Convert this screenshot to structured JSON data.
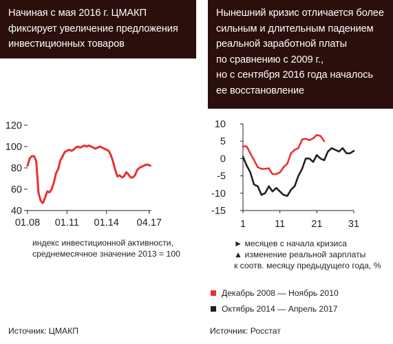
{
  "left_panel": {
    "title_lines": [
      "Начиная с мая 2016 г. ЦМАКП",
      "фиксирует увеличение предложения",
      "инвестиционных товаров"
    ],
    "caption_lines": [
      "индекс инвестиционной активности,",
      "среднемесячное значение 2013 = 100"
    ],
    "source": "Источник: ЦМАКП"
  },
  "right_panel": {
    "title_lines": [
      "Нынешний кризис отличается более",
      "сильным и длительным падением",
      "реальной заработной платы",
      "по сравнению с  2009 г.,",
      "но с сентября 2016 года началось",
      "ее восстановление"
    ],
    "caption_lines": [
      "► месяцев с начала кризиса",
      "▲ изменение реальной зарплаты",
      "к соотв. месяцу предыдущего года, %"
    ],
    "legend": [
      {
        "label": "Декабрь 2008 — Ноябрь 2010",
        "color": "#e8312f"
      },
      {
        "label": "Октябрь 2014 — Апрель 2017",
        "color": "#231f20"
      }
    ],
    "source": "Источник: Росстат"
  },
  "chart_data": [
    {
      "type": "line",
      "title": "",
      "xlabel": "",
      "ylabel": "",
      "x_ticks": [
        "01.08",
        "01.11",
        "01.14",
        "04.17"
      ],
      "x_tick_positions": [
        0,
        36,
        72,
        111
      ],
      "y_ticks": [
        40,
        60,
        80,
        100,
        120
      ],
      "ylim": [
        40,
        120
      ],
      "xlim": [
        0,
        113
      ],
      "grid": false,
      "series": [
        {
          "color": "#e8312f",
          "x": [
            0,
            2,
            4,
            6,
            8,
            10,
            12,
            14,
            16,
            18,
            20,
            22,
            24,
            26,
            28,
            30,
            32,
            34,
            36,
            38,
            40,
            42,
            44,
            46,
            48,
            50,
            52,
            54,
            56,
            58,
            60,
            62,
            64,
            66,
            68,
            70,
            72,
            74,
            76,
            78,
            80,
            82,
            84,
            86,
            88,
            90,
            92,
            94,
            96,
            98,
            100,
            102,
            104,
            106,
            108,
            110,
            112
          ],
          "y": [
            82,
            89,
            91,
            91,
            86,
            57,
            49,
            47,
            52,
            58,
            57,
            60,
            66,
            75,
            79,
            87,
            91,
            95,
            96,
            97,
            96,
            97,
            99,
            100,
            99,
            100,
            101,
            100,
            101,
            100,
            99,
            98,
            99,
            100,
            99,
            98,
            97,
            96,
            92,
            86,
            78,
            72,
            73,
            71,
            72,
            76,
            74,
            71,
            71,
            73,
            78,
            80,
            81,
            82,
            83,
            83,
            82
          ]
        }
      ]
    },
    {
      "type": "line",
      "title": "",
      "xlabel": "",
      "ylabel": "",
      "x_ticks": [
        "1",
        "11",
        "21",
        "31"
      ],
      "y_ticks": [
        10,
        5,
        0,
        -5,
        -10,
        -15
      ],
      "xlim": [
        1,
        31
      ],
      "ylim": [
        -15,
        10
      ],
      "grid": false,
      "series": [
        {
          "name": "Декабрь 2008 — Ноябрь 2010",
          "color": "#e8312f",
          "x": [
            1,
            2,
            3,
            4,
            5,
            6,
            7,
            8,
            9,
            10,
            11,
            12,
            13,
            14,
            15,
            16,
            17,
            18,
            19,
            20,
            21,
            22,
            23
          ],
          "y": [
            3.5,
            3.5,
            1.5,
            -0.5,
            -2.5,
            -3,
            -3,
            -2.8,
            -4.5,
            -4.5,
            -4,
            -2.5,
            -1.5,
            1.5,
            2.5,
            3,
            5.5,
            5.7,
            5.3,
            5.8,
            6.8,
            6.5,
            5
          ]
        },
        {
          "name": "Октябрь 2014 — Апрель 2017",
          "color": "#231f20",
          "x": [
            1,
            2,
            3,
            4,
            5,
            6,
            7,
            8,
            9,
            10,
            11,
            12,
            13,
            14,
            15,
            16,
            17,
            18,
            19,
            20,
            21,
            22,
            23,
            24,
            25,
            26,
            27,
            28,
            29,
            30,
            31
          ],
          "y": [
            0.5,
            -2,
            -4,
            -7.5,
            -8,
            -10.5,
            -10,
            -8,
            -9.5,
            -8.5,
            -9.5,
            -10.5,
            -10.8,
            -9,
            -8,
            -5,
            -3,
            0,
            0,
            -1,
            1,
            0,
            -0.5,
            2,
            3,
            2.5,
            2,
            3,
            1.5,
            1.5,
            2.2
          ]
        }
      ]
    }
  ]
}
